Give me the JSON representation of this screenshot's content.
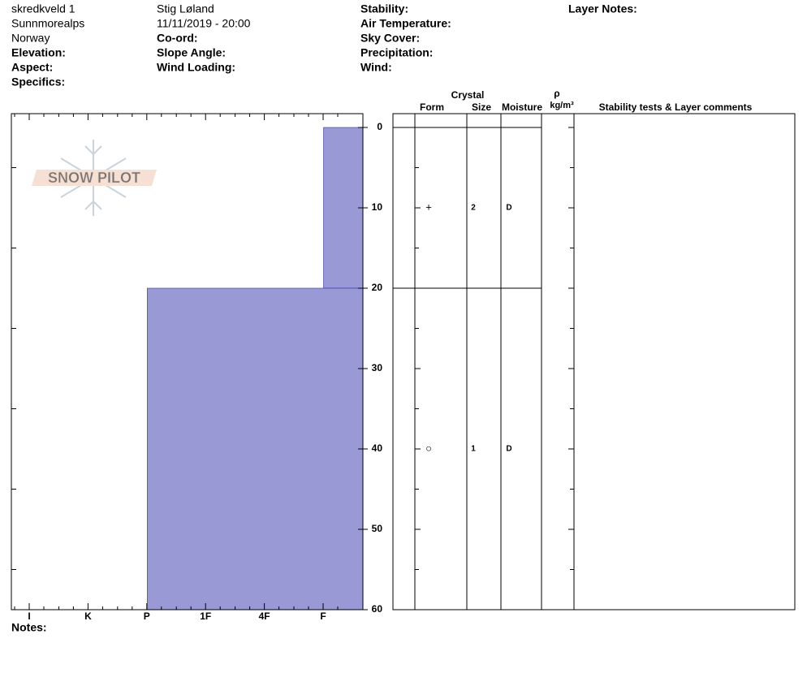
{
  "header": {
    "columns": [
      [
        "skredkveld 1",
        "Sunnmorealps",
        "Norway",
        "Elevation:",
        "Aspect:",
        "Specifics:"
      ],
      [
        "Stig Løland",
        "11/11/2019 - 20:00",
        "Co-ord:",
        "Slope Angle:",
        "Wind Loading:"
      ],
      [
        "Stability:",
        "Air Temperature:",
        "Sky Cover:",
        "Precipitation:",
        "Wind:"
      ],
      [
        "Layer Notes:"
      ]
    ]
  },
  "logo": "SNOW PILOT",
  "chart_data": {
    "type": "snow-profile",
    "ylim": [
      0,
      60
    ],
    "yticks": [
      0,
      10,
      20,
      30,
      40,
      50,
      60
    ],
    "hardness_scale": [
      "I",
      "K",
      "P",
      "1F",
      "4F",
      "F"
    ],
    "bar_color": "#9999d6",
    "layers": [
      {
        "top": 0,
        "bottom": 20,
        "hardness": "F",
        "form": "+",
        "size": 2,
        "moisture": "D"
      },
      {
        "top": 20,
        "bottom": 60,
        "hardness": "P",
        "form": "○",
        "size": 1,
        "moisture": "D"
      }
    ]
  },
  "table_header": {
    "crystal": "Crystal",
    "form": "Form",
    "size": "Size",
    "moisture": "Moisture",
    "rho": "ρ",
    "density_unit": "kg/m³",
    "comments": "Stability tests & Layer comments"
  },
  "notes": "Notes:"
}
